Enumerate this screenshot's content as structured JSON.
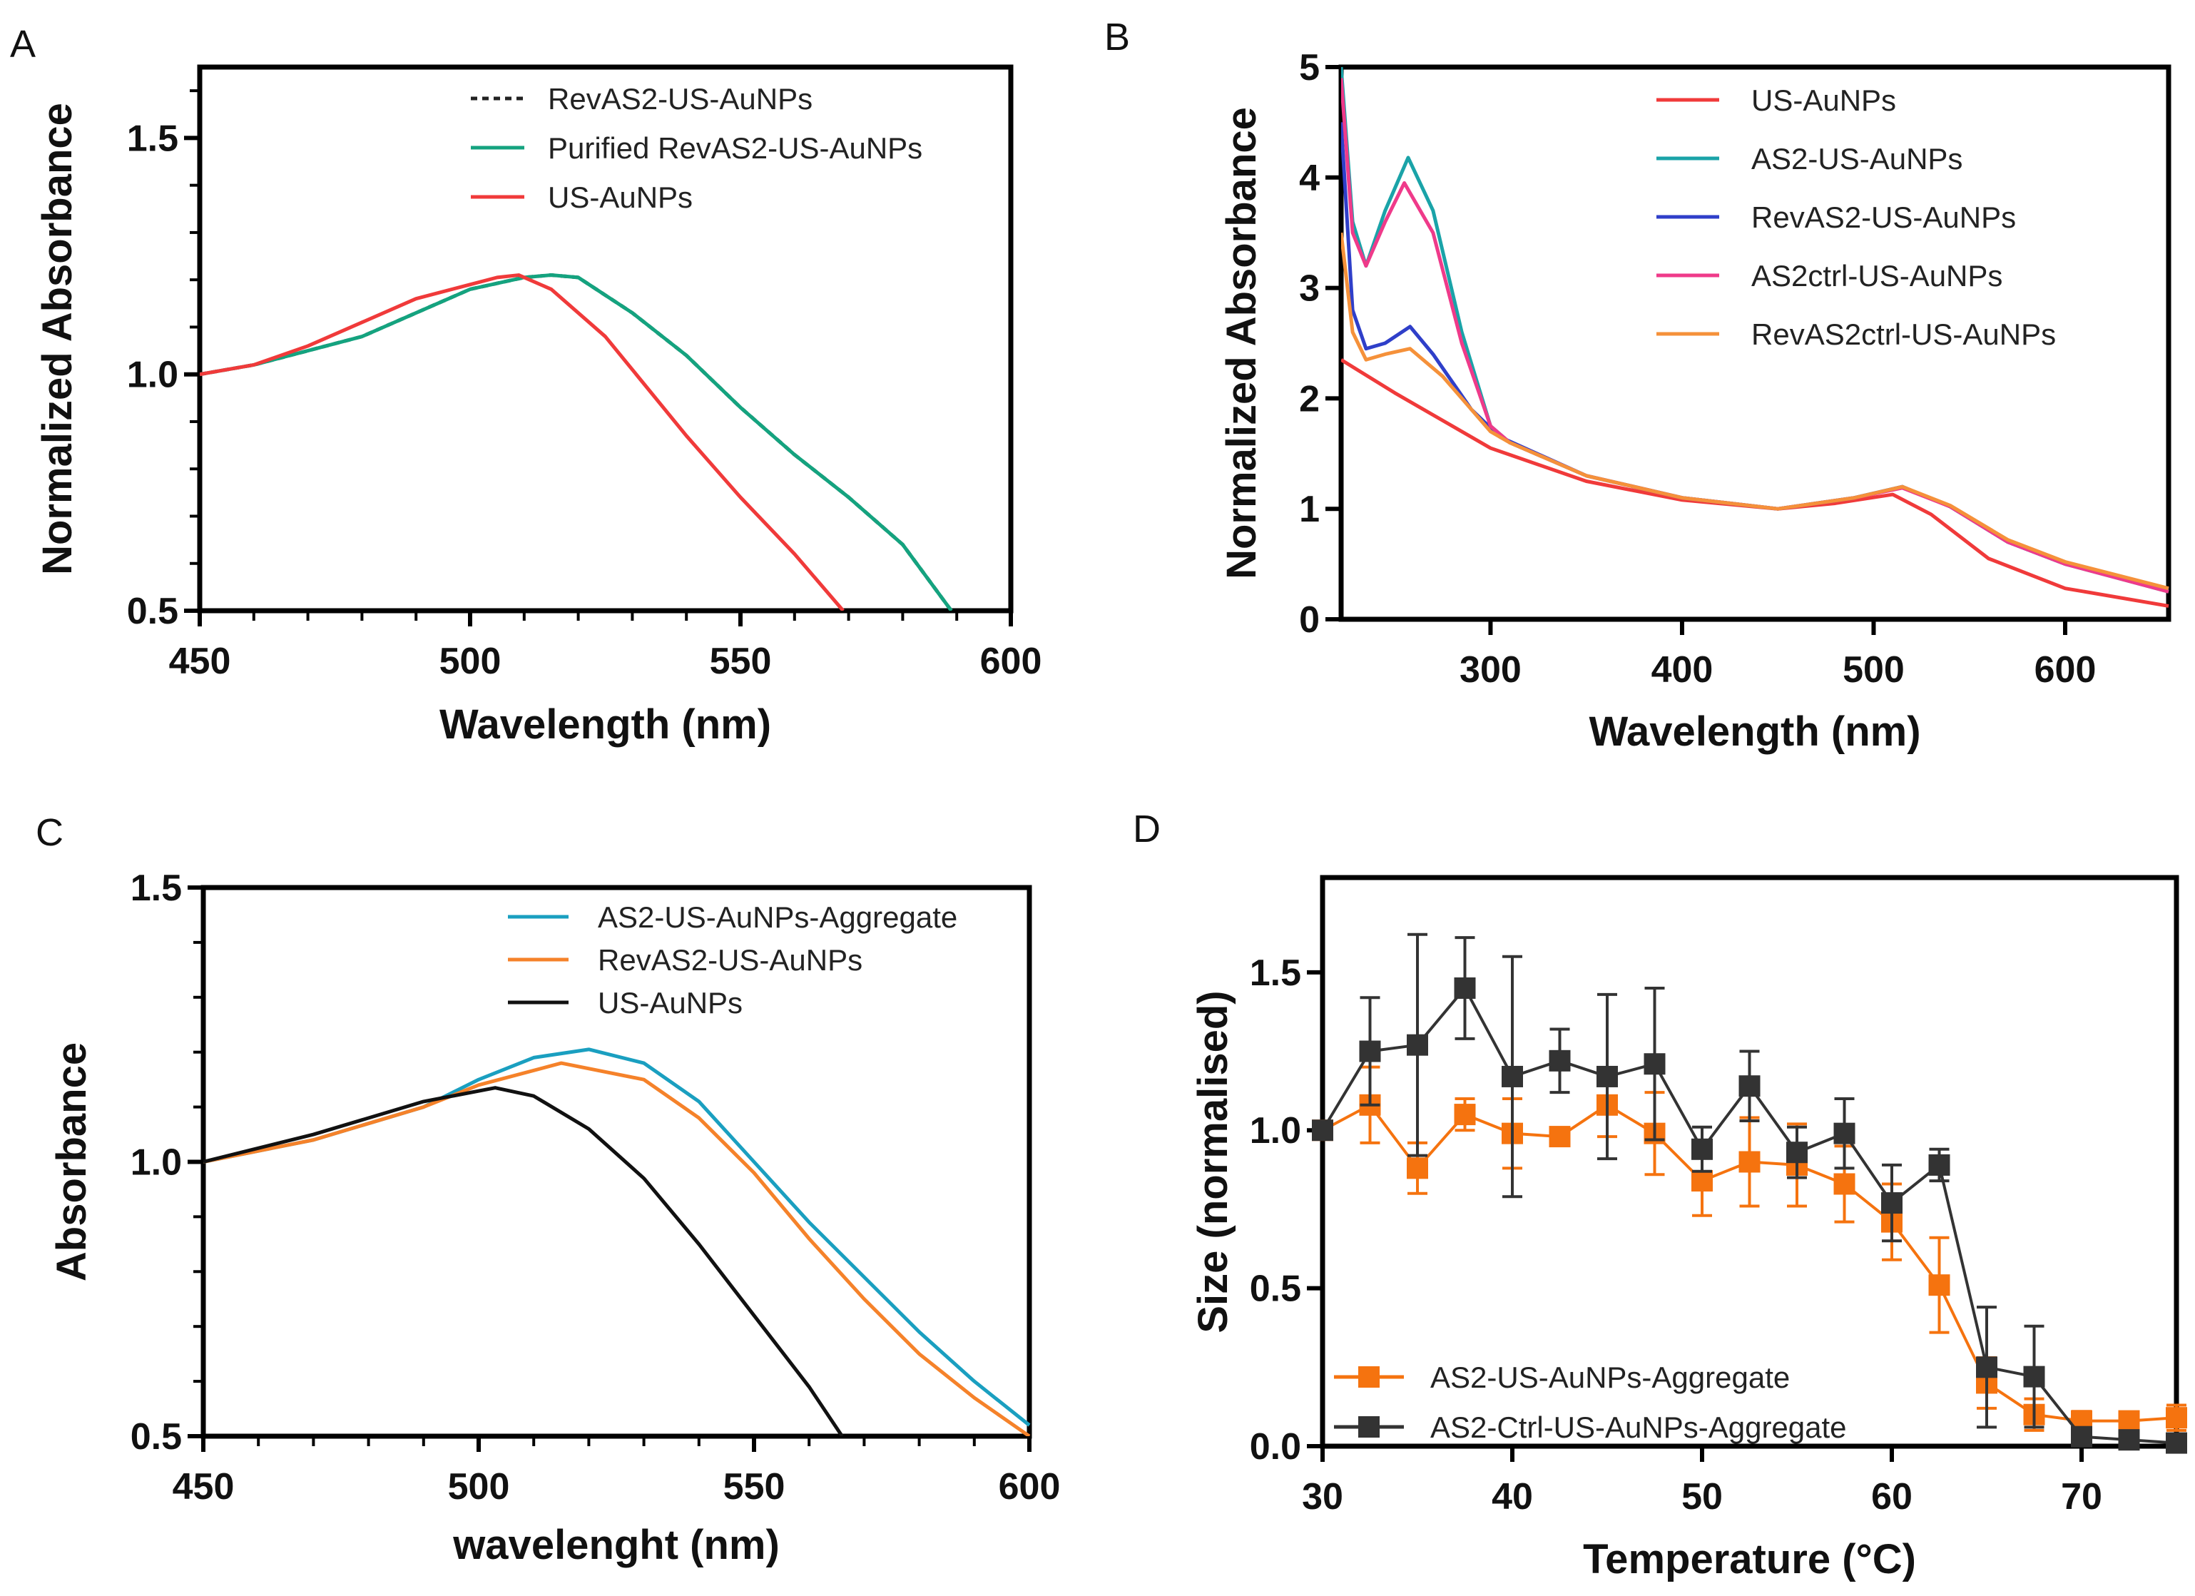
{
  "chart_data": [
    {
      "panel": "A",
      "type": "line",
      "xlabel": "Wavelength (nm)",
      "ylabel": "Normalized Absorbance",
      "xlim": [
        450,
        600
      ],
      "ylim": [
        0.5,
        1.65
      ],
      "xticks": [
        450,
        500,
        550,
        600
      ],
      "yticks": [
        0.5,
        1.0,
        1.5
      ],
      "ytick_labels": [
        "0.5",
        "1.0",
        "1.5"
      ],
      "legend_position": "top-right",
      "series": [
        {
          "name": "RevAS2-US-AuNPs",
          "color": "#222222",
          "dashed": true,
          "x": [
            450,
            460,
            470,
            480,
            490,
            500,
            510,
            515,
            520,
            530,
            540,
            550,
            560,
            570,
            580,
            589
          ],
          "y": [
            1.0,
            1.02,
            1.05,
            1.08,
            1.13,
            1.18,
            1.205,
            1.21,
            1.205,
            1.13,
            1.04,
            0.93,
            0.83,
            0.74,
            0.64,
            0.5
          ]
        },
        {
          "name": "Purified RevAS2-US-AuNPs",
          "color": "#14a37f",
          "dashed": false,
          "x": [
            450,
            460,
            470,
            480,
            490,
            500,
            510,
            515,
            520,
            530,
            540,
            550,
            560,
            570,
            580,
            589
          ],
          "y": [
            1.0,
            1.02,
            1.05,
            1.08,
            1.13,
            1.18,
            1.205,
            1.21,
            1.205,
            1.13,
            1.04,
            0.93,
            0.83,
            0.74,
            0.64,
            0.5
          ]
        },
        {
          "name": "US-AuNPs",
          "color": "#f03a3a",
          "dashed": false,
          "x": [
            450,
            460,
            470,
            480,
            490,
            500,
            505,
            509,
            515,
            525,
            540,
            550,
            560,
            569
          ],
          "y": [
            1.0,
            1.02,
            1.06,
            1.11,
            1.16,
            1.19,
            1.205,
            1.21,
            1.18,
            1.08,
            0.87,
            0.74,
            0.62,
            0.5
          ]
        }
      ]
    },
    {
      "panel": "B",
      "type": "line",
      "xlabel": "Wavelength (nm)",
      "ylabel": "Normalized Absorbance",
      "xlim": [
        222,
        654
      ],
      "ylim": [
        0,
        5
      ],
      "xticks": [
        300,
        400,
        500,
        600
      ],
      "yticks": [
        0,
        1,
        2,
        3,
        4,
        5
      ],
      "ytick_labels": [
        "0",
        "1",
        "2",
        "3",
        "4",
        "5"
      ],
      "legend_position": "top-right",
      "series": [
        {
          "name": "US-AuNPs",
          "color": "#f03a3a",
          "x": [
            222,
            250,
            280,
            300,
            350,
            400,
            450,
            480,
            510,
            530,
            560,
            600,
            654
          ],
          "y": [
            2.35,
            2.05,
            1.75,
            1.55,
            1.25,
            1.08,
            1.0,
            1.05,
            1.13,
            0.95,
            0.55,
            0.28,
            0.12
          ]
        },
        {
          "name": "AS2-US-AuNPs",
          "color": "#1aa3a8",
          "x": [
            222,
            228,
            235,
            245,
            257,
            270,
            285,
            300,
            310,
            350,
            400,
            450,
            490,
            515,
            540,
            570,
            600,
            654
          ],
          "y": [
            5.0,
            3.6,
            3.2,
            3.7,
            4.18,
            3.7,
            2.6,
            1.75,
            1.6,
            1.3,
            1.1,
            1.0,
            1.1,
            1.2,
            1.02,
            0.7,
            0.5,
            0.25
          ]
        },
        {
          "name": "RevAS2-US-AuNPs",
          "color": "#2f3fc9",
          "x": [
            222,
            228,
            235,
            245,
            258,
            270,
            290,
            305,
            350,
            400,
            450,
            490,
            515,
            540,
            570,
            600,
            654
          ],
          "y": [
            4.5,
            2.8,
            2.45,
            2.5,
            2.65,
            2.4,
            1.9,
            1.65,
            1.3,
            1.1,
            1.0,
            1.1,
            1.2,
            1.02,
            0.7,
            0.5,
            0.27
          ]
        },
        {
          "name": "AS2ctrl-US-AuNPs",
          "color": "#ef3a8a",
          "x": [
            222,
            228,
            235,
            245,
            255,
            270,
            285,
            300,
            310,
            350,
            400,
            450,
            490,
            515,
            540,
            570,
            600,
            654
          ],
          "y": [
            4.9,
            3.5,
            3.2,
            3.6,
            3.95,
            3.5,
            2.5,
            1.75,
            1.6,
            1.3,
            1.1,
            1.0,
            1.1,
            1.19,
            1.02,
            0.7,
            0.5,
            0.25
          ]
        },
        {
          "name": "RevAS2ctrl-US-AuNPs",
          "color": "#f5913a",
          "x": [
            222,
            228,
            235,
            245,
            258,
            275,
            300,
            310,
            350,
            400,
            450,
            490,
            515,
            540,
            570,
            600,
            654
          ],
          "y": [
            3.5,
            2.6,
            2.35,
            2.4,
            2.45,
            2.2,
            1.7,
            1.6,
            1.3,
            1.1,
            1.0,
            1.1,
            1.2,
            1.03,
            0.72,
            0.52,
            0.28
          ]
        }
      ]
    },
    {
      "panel": "C",
      "type": "line",
      "xlabel": "wavelenght (nm)",
      "ylabel": "Absorbance",
      "xlim": [
        450,
        600
      ],
      "ylim": [
        0.5,
        1.5
      ],
      "xticks": [
        450,
        500,
        550,
        600
      ],
      "yticks": [
        0.5,
        1.0,
        1.5
      ],
      "ytick_labels": [
        "0.5",
        "1.0",
        "1.5"
      ],
      "legend_position": "top-right",
      "series": [
        {
          "name": "AS2-US-AuNPs-Aggregate",
          "color": "#1a9fc0",
          "x": [
            450,
            470,
            490,
            500,
            510,
            520,
            530,
            540,
            550,
            560,
            570,
            580,
            590,
            600
          ],
          "y": [
            1.0,
            1.04,
            1.1,
            1.15,
            1.19,
            1.205,
            1.18,
            1.11,
            1.0,
            0.89,
            0.79,
            0.69,
            0.6,
            0.52
          ]
        },
        {
          "name": "RevAS2-US-AuNPs",
          "color": "#f5822a",
          "x": [
            450,
            470,
            490,
            500,
            515,
            530,
            540,
            550,
            560,
            570,
            580,
            590,
            600
          ],
          "y": [
            1.0,
            1.04,
            1.1,
            1.14,
            1.18,
            1.15,
            1.08,
            0.98,
            0.86,
            0.75,
            0.65,
            0.57,
            0.5
          ]
        },
        {
          "name": "US-AuNPs",
          "color": "#111111",
          "x": [
            450,
            470,
            490,
            503,
            510,
            520,
            530,
            540,
            550,
            560,
            566
          ],
          "y": [
            1.0,
            1.05,
            1.11,
            1.135,
            1.12,
            1.06,
            0.97,
            0.85,
            0.72,
            0.59,
            0.5
          ]
        }
      ]
    },
    {
      "panel": "D",
      "type": "scatter",
      "xlabel": "Temperature (°C)",
      "ylabel": "Size (normalised)",
      "xlim": [
        30,
        75
      ],
      "ylim": [
        0,
        1.8
      ],
      "xticks": [
        30,
        40,
        50,
        60,
        70
      ],
      "yticks": [
        0.0,
        0.5,
        1.0,
        1.5
      ],
      "ytick_labels": [
        "0.0",
        "0.5",
        "1.0",
        "1.5"
      ],
      "legend_position": "bottom-left",
      "x": [
        30,
        32.5,
        35,
        37.5,
        40,
        42.5,
        45,
        47.5,
        50,
        52.5,
        55,
        57.5,
        60,
        62.5,
        65,
        67.5,
        70,
        72.5,
        75
      ],
      "series": [
        {
          "name": "AS2-US-AuNPs-Aggregate",
          "color": "#f5730f",
          "y": [
            1.0,
            1.08,
            0.88,
            1.05,
            0.99,
            0.98,
            1.08,
            0.99,
            0.84,
            0.9,
            0.89,
            0.83,
            0.71,
            0.51,
            0.2,
            0.1,
            0.08,
            0.08,
            0.09
          ],
          "err": [
            0,
            0.12,
            0.08,
            0.05,
            0.11,
            0.02,
            0.1,
            0.13,
            0.11,
            0.14,
            0.13,
            0.12,
            0.12,
            0.15,
            0.08,
            0.05,
            0.03,
            0.02,
            0.04
          ]
        },
        {
          "name": "AS2-Ctrl-US-AuNPs-Aggregate",
          "color": "#333333",
          "y": [
            1.0,
            1.25,
            1.27,
            1.45,
            1.17,
            1.22,
            1.17,
            1.21,
            0.94,
            1.14,
            0.93,
            0.99,
            0.77,
            0.89,
            0.25,
            0.22,
            0.03,
            0.02,
            0.01
          ],
          "err": [
            0,
            0.17,
            0.35,
            0.16,
            0.38,
            0.1,
            0.26,
            0.24,
            0.07,
            0.11,
            0.08,
            0.11,
            0.12,
            0.05,
            0.19,
            0.16,
            0,
            0,
            0
          ]
        }
      ]
    }
  ],
  "panel_labels": [
    "A",
    "B",
    "C",
    "D"
  ]
}
